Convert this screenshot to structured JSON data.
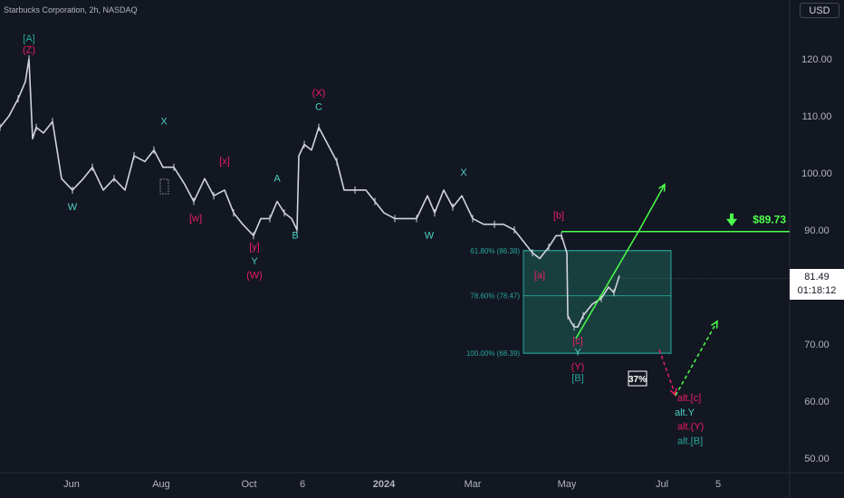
{
  "header": {
    "title": "Starbucks Corporation, 2h, NASDAQ",
    "currency": "USD"
  },
  "price_badge": {
    "price": "81.49",
    "countdown": "01:18:12"
  },
  "colors": {
    "background": "#131722",
    "candles": "#d1d4dc",
    "teal": "#26a69a",
    "cyan": "#4dd0c4",
    "magenta": "#e91e63",
    "green": "#4cff4c",
    "zone_fill": "#1f5f55"
  },
  "chart_data": {
    "type": "line",
    "title": "Starbucks Corporation, 2h, NASDAQ",
    "x_ticks": [
      "Jun",
      "Aug",
      "Oct",
      "6",
      "2024",
      "Mar",
      "May",
      "Jul",
      "5"
    ],
    "y_ticks": [
      "120.00",
      "110.00",
      "100.00",
      "90.00",
      "80.00",
      "70.00",
      "60.00",
      "50.00"
    ],
    "ylim": [
      47.5,
      126
    ],
    "grid": false,
    "price_path": [
      [
        0,
        108
      ],
      [
        10,
        110
      ],
      [
        20,
        113
      ],
      [
        28,
        116
      ],
      [
        32,
        120
      ],
      [
        36,
        106
      ],
      [
        40,
        108
      ],
      [
        48,
        107
      ],
      [
        58,
        109
      ],
      [
        68,
        99
      ],
      [
        80,
        97
      ],
      [
        92,
        99
      ],
      [
        102,
        101
      ],
      [
        114,
        97
      ],
      [
        126,
        99
      ],
      [
        138,
        97
      ],
      [
        148,
        103
      ],
      [
        160,
        102
      ],
      [
        170,
        104
      ],
      [
        180,
        101
      ],
      [
        192,
        101
      ],
      [
        204,
        98
      ],
      [
        214,
        95
      ],
      [
        226,
        99
      ],
      [
        236,
        96
      ],
      [
        248,
        97
      ],
      [
        258,
        93
      ],
      [
        268,
        91
      ],
      [
        280,
        89
      ],
      [
        288,
        92
      ],
      [
        298,
        92
      ],
      [
        306,
        95
      ],
      [
        314,
        93
      ],
      [
        322,
        92
      ],
      [
        328,
        90
      ],
      [
        330,
        103
      ],
      [
        336,
        105
      ],
      [
        344,
        104
      ],
      [
        352,
        108
      ],
      [
        362,
        105
      ],
      [
        372,
        102
      ],
      [
        380,
        97
      ],
      [
        392,
        97
      ],
      [
        404,
        97
      ],
      [
        414,
        95
      ],
      [
        424,
        93
      ],
      [
        436,
        92
      ],
      [
        448,
        92
      ],
      [
        460,
        92
      ],
      [
        472,
        96
      ],
      [
        480,
        93
      ],
      [
        490,
        97
      ],
      [
        500,
        94
      ],
      [
        510,
        96
      ],
      [
        522,
        92
      ],
      [
        534,
        91
      ],
      [
        546,
        91
      ],
      [
        556,
        91
      ],
      [
        568,
        90
      ],
      [
        578,
        88
      ],
      [
        588,
        86
      ],
      [
        596,
        85
      ],
      [
        606,
        87
      ],
      [
        614,
        89
      ],
      [
        620,
        89
      ],
      [
        626,
        86
      ],
      [
        627,
        75
      ],
      [
        630,
        74
      ],
      [
        634,
        73
      ],
      [
        638,
        73
      ],
      [
        644,
        75
      ],
      [
        654,
        77
      ],
      [
        664,
        78
      ],
      [
        672,
        80
      ],
      [
        678,
        79
      ],
      [
        684,
        82
      ]
    ],
    "fib_levels": [
      {
        "label": "61.80% (86.38)",
        "value": 86.38
      },
      {
        "label": "78.60% (78.47)",
        "value": 78.47
      },
      {
        "label": "100.00% (68.39)",
        "value": 68.39
      }
    ],
    "target": {
      "label": "$89.73",
      "value": 89.73
    },
    "projections": [
      {
        "name": "main",
        "style": "solid",
        "points": [
          [
            636,
            71
          ],
          [
            706,
            90
          ],
          [
            734,
            98
          ]
        ]
      },
      {
        "name": "alt-down",
        "style": "dashed",
        "points": [
          [
            728,
            69
          ],
          [
            746,
            61
          ]
        ]
      },
      {
        "name": "alt-up",
        "style": "dashed",
        "points": [
          [
            746,
            61
          ],
          [
            792,
            74
          ]
        ]
      }
    ],
    "probability": "37%",
    "annotations": [
      {
        "text": "[A]",
        "x": 32,
        "y": 123,
        "color": "teal"
      },
      {
        "text": "(Z)",
        "x": 32,
        "y": 121,
        "color": "magenta"
      },
      {
        "text": "W",
        "x": 80,
        "y": 93.5,
        "color": "cyan"
      },
      {
        "text": "X",
        "x": 181,
        "y": 108.5,
        "color": "cyan"
      },
      {
        "text": "[w]",
        "x": 216,
        "y": 91.5,
        "color": "magenta"
      },
      {
        "text": "[x]",
        "x": 248,
        "y": 101.5,
        "color": "magenta"
      },
      {
        "text": "A",
        "x": 306,
        "y": 98.5,
        "color": "cyan"
      },
      {
        "text": "[y]",
        "x": 281,
        "y": 86.5,
        "color": "magenta"
      },
      {
        "text": "Y",
        "x": 281,
        "y": 84,
        "color": "cyan"
      },
      {
        "text": "(W)",
        "x": 281,
        "y": 81.5,
        "color": "magenta"
      },
      {
        "text": "B",
        "x": 326,
        "y": 88.5,
        "color": "cyan"
      },
      {
        "text": "(X)",
        "x": 352,
        "y": 113.5,
        "color": "magenta"
      },
      {
        "text": "C",
        "x": 352,
        "y": 111,
        "color": "cyan"
      },
      {
        "text": "W",
        "x": 474,
        "y": 88.5,
        "color": "cyan"
      },
      {
        "text": "X",
        "x": 512,
        "y": 99.5,
        "color": "cyan"
      },
      {
        "text": "[b]",
        "x": 617,
        "y": 92,
        "color": "magenta"
      },
      {
        "text": "[a]",
        "x": 596,
        "y": 81.5,
        "color": "magenta"
      },
      {
        "text": "[c]",
        "x": 638,
        "y": 70,
        "color": "magenta"
      },
      {
        "text": "Y",
        "x": 638,
        "y": 68,
        "color": "cyan"
      },
      {
        "text": "(Y)",
        "x": 638,
        "y": 65.5,
        "color": "magenta"
      },
      {
        "text": "[B]",
        "x": 638,
        "y": 63.5,
        "color": "teal"
      },
      {
        "text": "alt.[c]",
        "x": 748,
        "y": 60,
        "color": "magenta"
      },
      {
        "text": "alt.Y",
        "x": 745,
        "y": 57.5,
        "color": "cyan"
      },
      {
        "text": "alt.(Y)",
        "x": 748,
        "y": 55,
        "color": "magenta"
      },
      {
        "text": "alt.[B]",
        "x": 748,
        "y": 52.5,
        "color": "teal"
      }
    ]
  }
}
